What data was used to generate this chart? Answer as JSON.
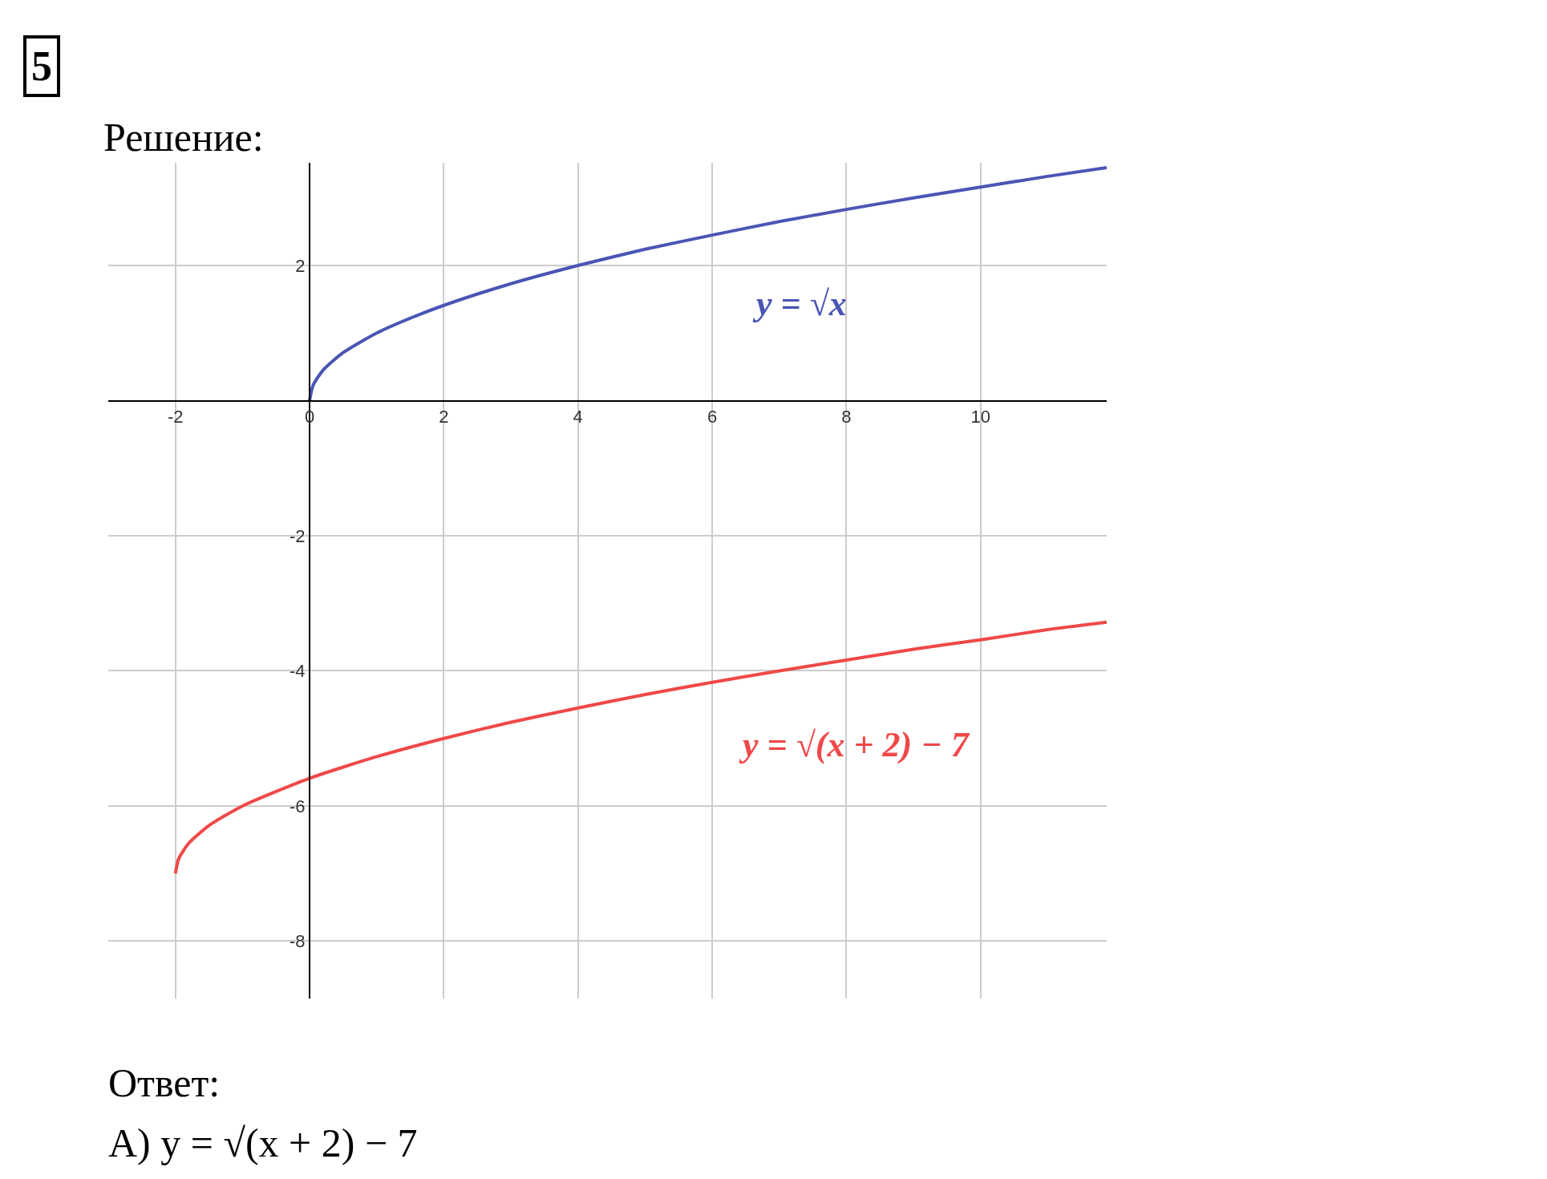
{
  "chart_data": {
    "type": "line",
    "title": "Решение:",
    "xlim": [
      -3.0,
      11.88
    ],
    "ylim": [
      -8.85,
      3.52
    ],
    "xticks": [
      -2,
      0,
      2,
      4,
      6,
      8,
      10
    ],
    "yticks": [
      -8,
      -6,
      -4,
      -2,
      2
    ],
    "grid": true,
    "legend": false,
    "marker": "none",
    "line_style": "solid",
    "series": [
      {
        "name": "y = √x",
        "color": "#4a55b5",
        "x": [
          0,
          0.05,
          0.2,
          0.5,
          1,
          1.5,
          2,
          3,
          4,
          5,
          6,
          7,
          8,
          9,
          10,
          11,
          11.88
        ],
        "values": [
          0,
          0.22,
          0.45,
          0.71,
          1,
          1.22,
          1.41,
          1.73,
          2,
          2.24,
          2.45,
          2.65,
          2.83,
          3,
          3.16,
          3.32,
          3.45
        ]
      },
      {
        "name": "y = √(x + 2) − 7",
        "color": "#f04848",
        "x": [
          -2,
          -1.95,
          -1.8,
          -1.5,
          -1,
          0,
          1,
          2,
          3,
          4,
          5,
          6,
          7,
          8,
          9,
          10,
          11,
          11.88
        ],
        "values": [
          -7,
          -6.78,
          -6.55,
          -6.29,
          -6,
          -5.59,
          -5.27,
          -5,
          -4.76,
          -4.55,
          -4.35,
          -4.17,
          -4,
          -3.84,
          -3.68,
          -3.54,
          -3.39,
          -3.28
        ]
      }
    ],
    "annotations": [
      "5",
      "Ответ:",
      "А) y = √(x + 2) − 7"
    ]
  }
}
